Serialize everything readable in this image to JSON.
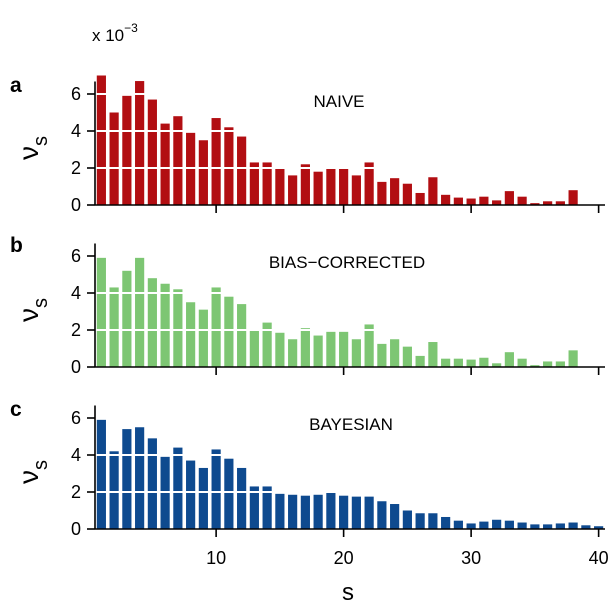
{
  "figure": {
    "exponent_label": "x 10",
    "exponent_power": "−3",
    "xlabel": "s",
    "ylabel_main": "ν",
    "ylabel_sub": "s"
  },
  "chart_data": [
    {
      "type": "bar",
      "panel_letter": "a",
      "title": "NAIVE",
      "color": "#b20e12",
      "x": [
        1,
        2,
        3,
        4,
        5,
        6,
        7,
        8,
        9,
        10,
        11,
        12,
        13,
        14,
        15,
        16,
        17,
        18,
        19,
        20,
        21,
        22,
        23,
        24,
        25,
        26,
        27,
        28,
        29,
        30,
        31,
        32,
        33,
        34,
        35,
        36,
        37,
        38,
        39,
        40
      ],
      "values": [
        7.0,
        5.0,
        5.9,
        6.7,
        5.7,
        4.4,
        4.8,
        3.9,
        3.5,
        4.7,
        4.2,
        3.7,
        2.3,
        2.3,
        1.95,
        1.6,
        2.2,
        1.8,
        1.95,
        1.95,
        1.6,
        2.3,
        1.25,
        1.45,
        1.15,
        0.65,
        1.5,
        0.55,
        0.4,
        0.35,
        0.45,
        0.25,
        0.75,
        0.45,
        0.1,
        0.2,
        0.2,
        0.8,
        0,
        0
      ],
      "xlim": [
        0.5,
        40.5
      ],
      "ylim": [
        0,
        7
      ],
      "xticks": [
        10,
        20,
        30,
        40
      ],
      "yticks": [
        0,
        2,
        4,
        6
      ],
      "gridlines": [
        2,
        4,
        6
      ]
    },
    {
      "type": "bar",
      "panel_letter": "b",
      "title": "BIAS−CORRECTED",
      "color": "#7dc673",
      "x": [
        1,
        2,
        3,
        4,
        5,
        6,
        7,
        8,
        9,
        10,
        11,
        12,
        13,
        14,
        15,
        16,
        17,
        18,
        19,
        20,
        21,
        22,
        23,
        24,
        25,
        26,
        27,
        28,
        29,
        30,
        31,
        32,
        33,
        34,
        35,
        36,
        37,
        38,
        39,
        40
      ],
      "values": [
        5.9,
        4.3,
        5.2,
        5.9,
        4.8,
        4.5,
        4.2,
        3.5,
        3.1,
        4.3,
        3.8,
        3.4,
        2.0,
        2.4,
        1.85,
        1.5,
        2.1,
        1.7,
        1.9,
        1.9,
        1.5,
        2.3,
        1.25,
        1.5,
        1.1,
        0.6,
        1.35,
        0.45,
        0.45,
        0.4,
        0.5,
        0.2,
        0.8,
        0.45,
        0.1,
        0.3,
        0.3,
        0.9,
        0,
        0
      ],
      "xlim": [
        0.5,
        40.5
      ],
      "ylim": [
        0,
        7
      ],
      "xticks": [
        10,
        20,
        30,
        40
      ],
      "yticks": [
        0,
        2,
        4,
        6
      ],
      "gridlines": [
        2,
        4
      ]
    },
    {
      "type": "bar",
      "panel_letter": "c",
      "title": "BAYESIAN",
      "color": "#0e4a8f",
      "x": [
        1,
        2,
        3,
        4,
        5,
        6,
        7,
        8,
        9,
        10,
        11,
        12,
        13,
        14,
        15,
        16,
        17,
        18,
        19,
        20,
        21,
        22,
        23,
        24,
        25,
        26,
        27,
        28,
        29,
        30,
        31,
        32,
        33,
        34,
        35,
        36,
        37,
        38,
        39,
        40
      ],
      "values": [
        5.9,
        4.2,
        5.4,
        5.5,
        4.9,
        3.9,
        4.4,
        3.7,
        3.3,
        4.3,
        3.8,
        3.3,
        2.3,
        2.3,
        1.9,
        1.85,
        1.8,
        1.85,
        2.05,
        1.8,
        1.75,
        1.75,
        1.5,
        1.35,
        1.0,
        0.85,
        0.85,
        0.65,
        0.45,
        0.3,
        0.4,
        0.5,
        0.45,
        0.35,
        0.25,
        0.25,
        0.3,
        0.35,
        0.2,
        0.15
      ],
      "xlim": [
        0.5,
        40.5
      ],
      "ylim": [
        0,
        7
      ],
      "xticks": [
        10,
        20,
        30,
        40
      ],
      "yticks": [
        0,
        2,
        4,
        6
      ],
      "gridlines": [
        2,
        4
      ]
    }
  ]
}
